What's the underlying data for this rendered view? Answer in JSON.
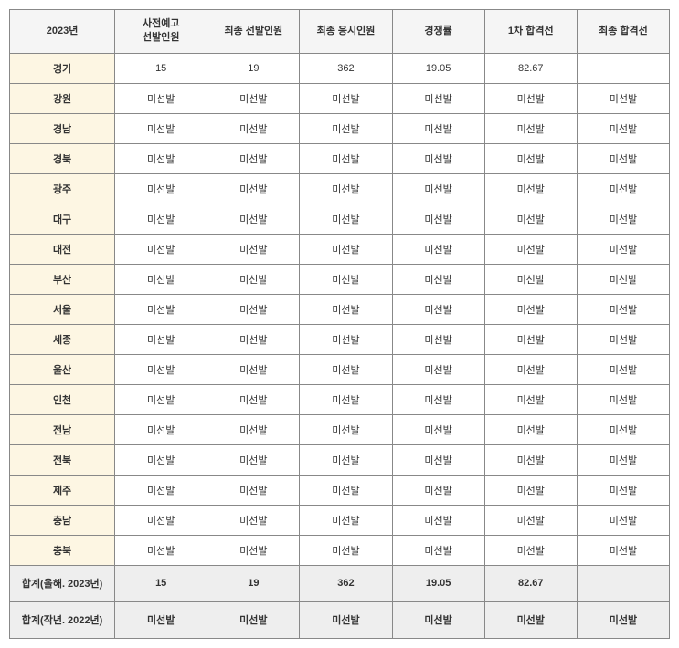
{
  "table": {
    "headers": [
      "2023년",
      "사전예고\n선발인원",
      "최종 선발인원",
      "최종 응시인원",
      "경쟁률",
      "1차 합격선",
      "최종 합격선"
    ],
    "rows": [
      {
        "region": "경기",
        "cells": [
          "15",
          "19",
          "362",
          "19.05",
          "82.67",
          ""
        ]
      },
      {
        "region": "강원",
        "cells": [
          "미선발",
          "미선발",
          "미선발",
          "미선발",
          "미선발",
          "미선발"
        ]
      },
      {
        "region": "경남",
        "cells": [
          "미선발",
          "미선발",
          "미선발",
          "미선발",
          "미선발",
          "미선발"
        ]
      },
      {
        "region": "경북",
        "cells": [
          "미선발",
          "미선발",
          "미선발",
          "미선발",
          "미선발",
          "미선발"
        ]
      },
      {
        "region": "광주",
        "cells": [
          "미선발",
          "미선발",
          "미선발",
          "미선발",
          "미선발",
          "미선발"
        ]
      },
      {
        "region": "대구",
        "cells": [
          "미선발",
          "미선발",
          "미선발",
          "미선발",
          "미선발",
          "미선발"
        ]
      },
      {
        "region": "대전",
        "cells": [
          "미선발",
          "미선발",
          "미선발",
          "미선발",
          "미선발",
          "미선발"
        ]
      },
      {
        "region": "부산",
        "cells": [
          "미선발",
          "미선발",
          "미선발",
          "미선발",
          "미선발",
          "미선발"
        ]
      },
      {
        "region": "서울",
        "cells": [
          "미선발",
          "미선발",
          "미선발",
          "미선발",
          "미선발",
          "미선발"
        ]
      },
      {
        "region": "세종",
        "cells": [
          "미선발",
          "미선발",
          "미선발",
          "미선발",
          "미선발",
          "미선발"
        ]
      },
      {
        "region": "울산",
        "cells": [
          "미선발",
          "미선발",
          "미선발",
          "미선발",
          "미선발",
          "미선발"
        ]
      },
      {
        "region": "인천",
        "cells": [
          "미선발",
          "미선발",
          "미선발",
          "미선발",
          "미선발",
          "미선발"
        ]
      },
      {
        "region": "전남",
        "cells": [
          "미선발",
          "미선발",
          "미선발",
          "미선발",
          "미선발",
          "미선발"
        ]
      },
      {
        "region": "전북",
        "cells": [
          "미선발",
          "미선발",
          "미선발",
          "미선발",
          "미선발",
          "미선발"
        ]
      },
      {
        "region": "제주",
        "cells": [
          "미선발",
          "미선발",
          "미선발",
          "미선발",
          "미선발",
          "미선발"
        ]
      },
      {
        "region": "충남",
        "cells": [
          "미선발",
          "미선발",
          "미선발",
          "미선발",
          "미선발",
          "미선발"
        ]
      },
      {
        "region": "충북",
        "cells": [
          "미선발",
          "미선발",
          "미선발",
          "미선발",
          "미선발",
          "미선발"
        ]
      }
    ],
    "summary": [
      {
        "region": "합계(올해. 2023년)",
        "cells": [
          "15",
          "19",
          "362",
          "19.05",
          "82.67",
          ""
        ]
      },
      {
        "region": "합계(작년. 2022년)",
        "cells": [
          "미선발",
          "미선발",
          "미선발",
          "미선발",
          "미선발",
          "미선발"
        ]
      }
    ]
  },
  "colors": {
    "header_bg": "#f5f5f5",
    "region_bg": "#fdf6e3",
    "summary_bg": "#eeeeee",
    "border": "#888888",
    "text": "#333333"
  }
}
